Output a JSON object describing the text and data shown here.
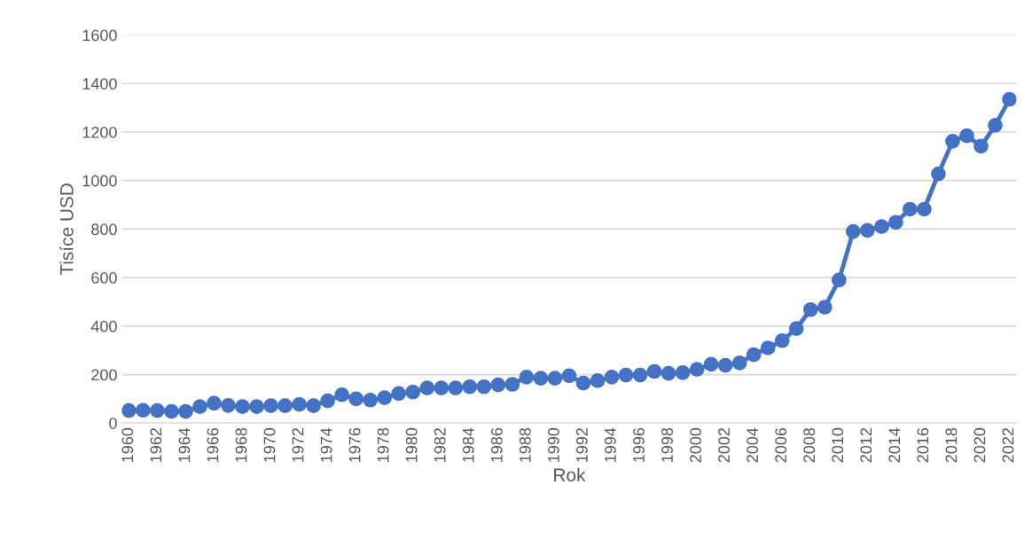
{
  "chart_data": {
    "type": "line",
    "xlabel": "Rok",
    "ylabel": "Tisíce USD",
    "categories": [
      "1960",
      null,
      "1962",
      null,
      "1964",
      null,
      "1966",
      null,
      "1968",
      null,
      "1970",
      null,
      "1972",
      null,
      "1974",
      null,
      "1976",
      null,
      "1978",
      null,
      "1980",
      null,
      "1982",
      null,
      "1984",
      null,
      "1986",
      null,
      "1988",
      null,
      "1990",
      null,
      "1992",
      null,
      "1994",
      null,
      "1996",
      null,
      "1998",
      null,
      "2000",
      null,
      "2002",
      null,
      "2004",
      null,
      "2006",
      null,
      "2008",
      null,
      "2010",
      null,
      "2012",
      null,
      "2014",
      null,
      "2016",
      null,
      "2018",
      null,
      "2020",
      null,
      "2022"
    ],
    "series": [
      {
        "color": "#4472c4",
        "values": [
          52,
          53,
          52,
          48,
          48,
          68,
          82,
          73,
          68,
          68,
          72,
          72,
          77,
          72,
          92,
          117,
          100,
          95,
          105,
          122,
          128,
          145,
          145,
          145,
          150,
          150,
          158,
          160,
          190,
          185,
          185,
          195,
          165,
          175,
          190,
          198,
          198,
          213,
          205,
          208,
          222,
          243,
          238,
          248,
          282,
          310,
          340,
          390,
          468,
          478,
          590,
          790,
          795,
          810,
          828,
          882,
          882,
          1028,
          1162,
          1185,
          1142,
          1228,
          1335
        ]
      }
    ],
    "ylim": [
      0,
      1600
    ],
    "yticks": [
      0,
      200,
      400,
      600,
      800,
      1000,
      1200,
      1400,
      1600
    ],
    "grid": "y",
    "marker": "circle",
    "line_style": "solid",
    "legend": false
  }
}
